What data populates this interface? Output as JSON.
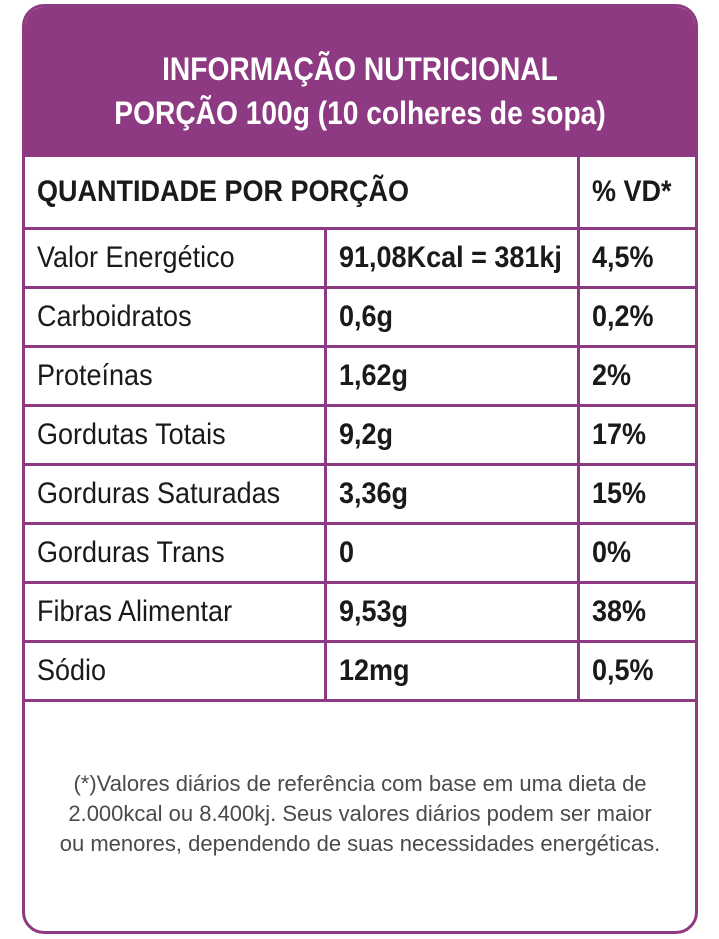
{
  "header": {
    "title": "INFORMAÇÃO NUTRICIONAL",
    "portion": "PORÇÃO 100g (10 colheres de sopa)"
  },
  "table": {
    "col_quantity_header": "QUANTIDADE POR PORÇÃO",
    "col_vd_header": "% VD*",
    "rows": [
      {
        "name": "Valor Energético",
        "amount": "91,08Kcal = 381kj",
        "vd": "4,5%"
      },
      {
        "name": "Carboidratos",
        "amount": "0,6g",
        "vd": "0,2%"
      },
      {
        "name": "Proteínas",
        "amount": "1,62g",
        "vd": "2%"
      },
      {
        "name": "Gordutas Totais",
        "amount": "9,2g",
        "vd": "17%"
      },
      {
        "name": "Gorduras Saturadas",
        "amount": "3,36g",
        "vd": "15%"
      },
      {
        "name": "Gorduras Trans",
        "amount": "0",
        "vd": "0%"
      },
      {
        "name": "Fibras Alimentar",
        "amount": "9,53g",
        "vd": "38%"
      },
      {
        "name": "Sódio",
        "amount": "12mg",
        "vd": "0,5%"
      }
    ]
  },
  "footnote": {
    "line1": "(*)Valores diários de referência com base em uma dieta de",
    "line2": "2.000kcal ou 8.400kj. Seus valores diários podem ser maior",
    "line3": "ou menores, dependendo  de suas necessidades energéticas."
  },
  "colors": {
    "accent": "#8e3a82",
    "header_text": "#ffffff",
    "body_text": "#1a1a1a"
  }
}
